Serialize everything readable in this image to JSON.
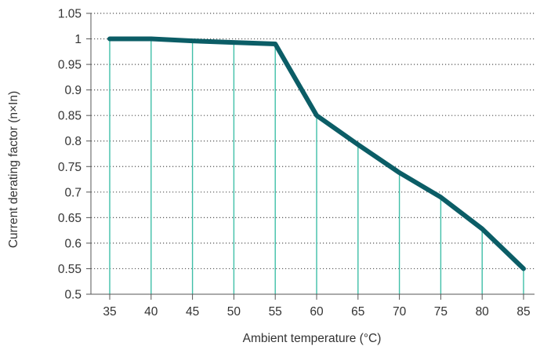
{
  "chart_data": {
    "type": "line",
    "xlabel": "Ambient temperature (°C)",
    "ylabel": "Current derating factor (n×In)",
    "x": [
      35,
      40,
      45,
      50,
      55,
      60,
      65,
      70,
      75,
      80,
      85
    ],
    "x_tick_labels": [
      "35",
      "40",
      "45",
      "50",
      "55",
      "60",
      "65",
      "70",
      "75",
      "80",
      "85"
    ],
    "y_ticks": [
      0.5,
      0.55,
      0.6,
      0.65,
      0.7,
      0.75,
      0.8,
      0.85,
      0.9,
      0.95,
      1,
      1.05
    ],
    "y_tick_labels": [
      "0.5",
      "0.55",
      "0.6",
      "0.65",
      "0.7",
      "0.75",
      "0.8",
      "0.85",
      "0.9",
      "0.95",
      "1",
      "1.05"
    ],
    "ylim": [
      0.5,
      1.05
    ],
    "xlim": [
      35,
      85
    ],
    "grid": "horizontal dotted",
    "drop_lines": true,
    "series": [
      {
        "values": [
          1.0,
          1.0,
          0.996,
          0.993,
          0.99,
          0.85,
          0.793,
          0.738,
          0.69,
          0.628,
          0.55
        ]
      }
    ],
    "colors": {
      "line": "#0b5d66",
      "drop_line": "#3fbfa8",
      "grid": "#555555",
      "axis": "#555555",
      "text": "#333333"
    }
  }
}
